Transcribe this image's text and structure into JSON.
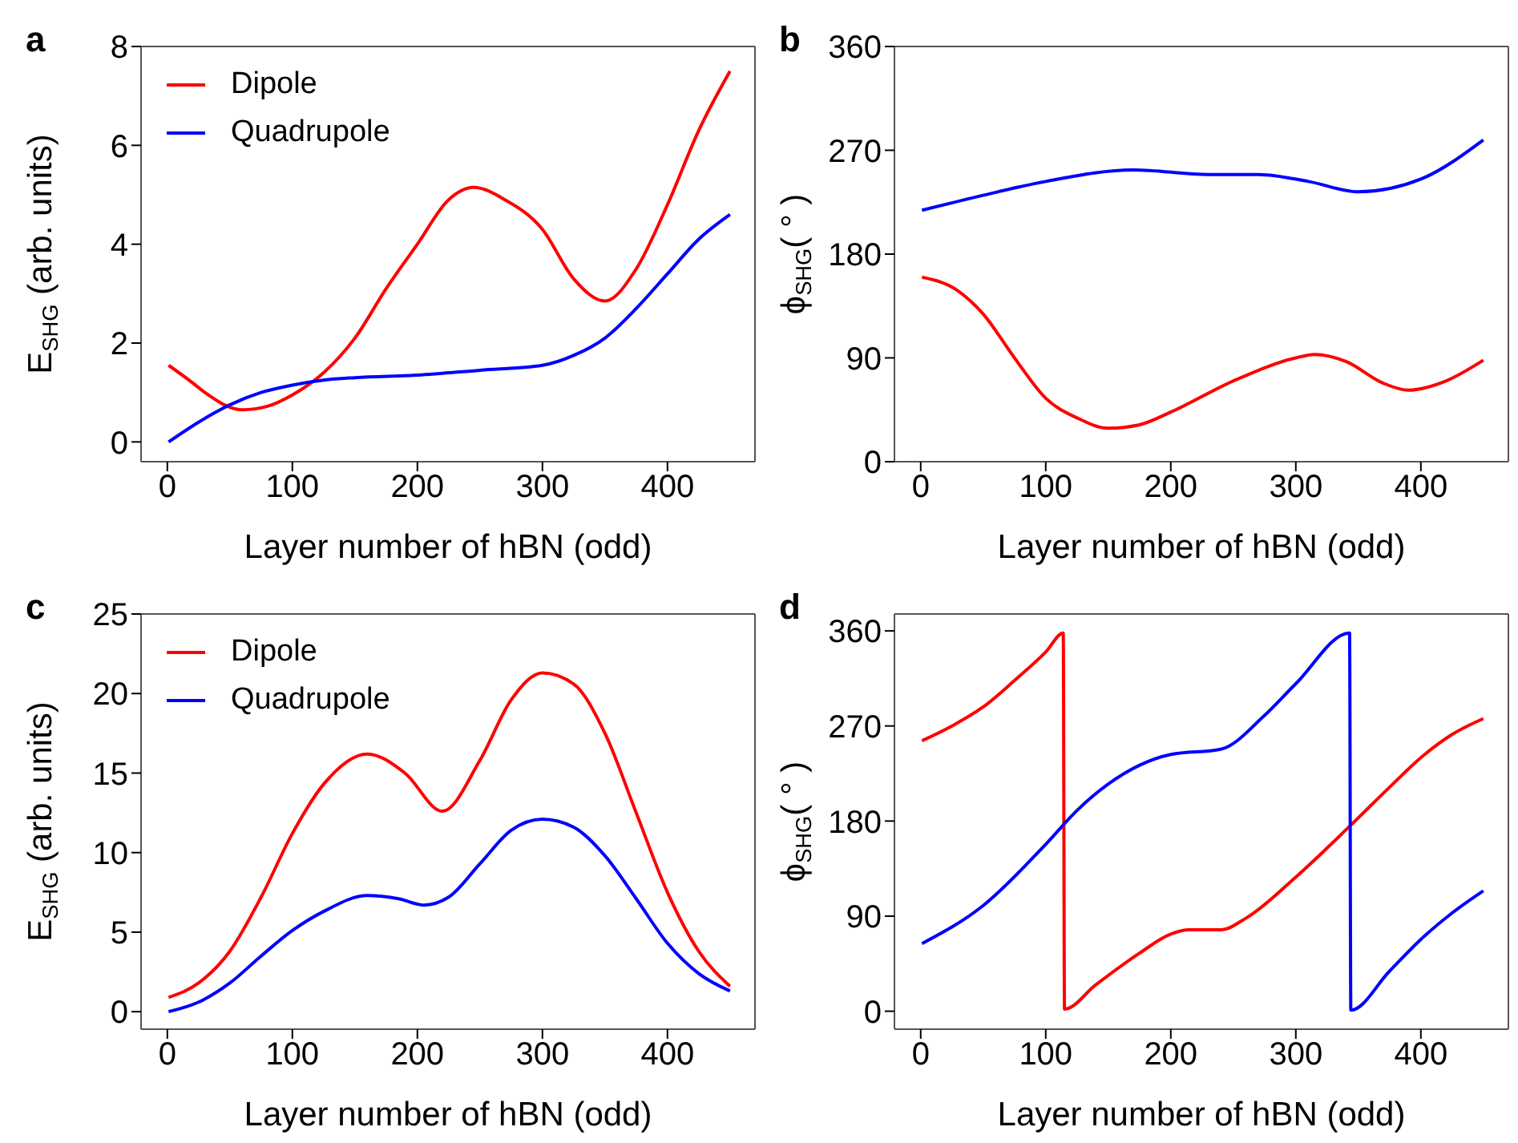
{
  "chart_data": [
    {
      "type": "line",
      "annotations": [
        "a"
      ],
      "xlabel": "Layer number of hBN (odd)",
      "ylabel": "E$_{SHG}$ (arb. units)",
      "xlim": [
        -21,
        470
      ],
      "xticks": [
        0,
        100,
        200,
        300,
        400
      ],
      "ylim": [
        -0.4,
        8
      ],
      "yticks": [
        0,
        2,
        4,
        6,
        8
      ],
      "legend": "top left",
      "series": [
        {
          "name": "Dipole",
          "color": "#ff0000",
          "x": [
            1,
            20,
            30,
            60,
            80,
            100,
            125,
            150,
            175,
            200,
            225,
            245,
            270,
            300,
            325,
            350,
            375,
            400,
            425,
            450
          ],
          "values": [
            1.55,
            1.2,
            1.0,
            0.65,
            0.72,
            0.95,
            1.4,
            2.1,
            3.1,
            4.0,
            4.9,
            5.15,
            4.9,
            4.3,
            3.3,
            2.85,
            3.5,
            4.8,
            6.3,
            7.5
          ]
        },
        {
          "name": "Quadrupole",
          "color": "#0000ff",
          "x": [
            1,
            25,
            50,
            75,
            100,
            125,
            150,
            200,
            250,
            300,
            325,
            350,
            375,
            400,
            425,
            450
          ],
          "values": [
            0,
            0.4,
            0.75,
            1.0,
            1.15,
            1.25,
            1.3,
            1.35,
            1.45,
            1.55,
            1.75,
            2.1,
            2.7,
            3.4,
            4.1,
            4.6
          ]
        }
      ]
    },
    {
      "type": "line",
      "annotations": [
        "b"
      ],
      "xlabel": "Layer number of hBN (odd)",
      "ylabel": "ϕ$_{SHG}$( ° )",
      "xlim": [
        -21,
        470
      ],
      "xticks": [
        0,
        100,
        200,
        300,
        400
      ],
      "ylim": [
        0,
        360
      ],
      "yticks": [
        0,
        90,
        180,
        270,
        360
      ],
      "series": [
        {
          "color": "#0000ff",
          "x": [
            1,
            50,
            100,
            170,
            230,
            270,
            310,
            350,
            400,
            450
          ],
          "values": [
            218,
            231,
            243,
            253,
            249,
            249,
            243,
            234,
            245,
            279
          ]
        },
        {
          "color": "#ff0000",
          "x": [
            1,
            30,
            50,
            75,
            100,
            125,
            150,
            175,
            200,
            250,
            300,
            315,
            340,
            370,
            390,
            420,
            450
          ],
          "values": [
            160,
            148,
            128,
            90,
            55,
            38,
            29,
            32,
            43,
            70,
            90,
            93,
            87,
            68,
            62,
            70,
            88
          ]
        }
      ]
    },
    {
      "type": "line",
      "annotations": [
        "c"
      ],
      "xlabel": "Layer number of hBN (odd)",
      "ylabel": "E$_{SHG}$ (arb. units)",
      "xlim": [
        -21,
        470
      ],
      "xticks": [
        0,
        100,
        200,
        300,
        400
      ],
      "ylim": [
        -1.1,
        25
      ],
      "yticks": [
        0,
        5,
        10,
        15,
        20,
        25
      ],
      "legend": "top left",
      "series": [
        {
          "name": "Dipole",
          "color": "#ff0000",
          "x": [
            1,
            25,
            50,
            75,
            100,
            125,
            160,
            190,
            220,
            250,
            275,
            300,
            325,
            350,
            375,
            400,
            425,
            450
          ],
          "values": [
            0.9,
            1.8,
            3.8,
            7.2,
            11.2,
            14.3,
            16.2,
            15,
            12.6,
            15.8,
            19.6,
            21.3,
            20.6,
            17.5,
            12.5,
            7.5,
            3.8,
            1.6
          ]
        },
        {
          "name": "Quadrupole",
          "color": "#0000ff",
          "x": [
            1,
            25,
            50,
            75,
            100,
            125,
            160,
            185,
            205,
            225,
            250,
            275,
            300,
            325,
            350,
            375,
            400,
            425,
            450
          ],
          "values": [
            0,
            0.6,
            1.8,
            3.5,
            5.1,
            6.3,
            7.3,
            7.1,
            6.7,
            7.2,
            9.3,
            11.4,
            12.1,
            11.6,
            9.8,
            7.1,
            4.3,
            2.4,
            1.3
          ]
        }
      ]
    },
    {
      "type": "line",
      "annotations": [
        "d"
      ],
      "xlabel": "Layer number of hBN (odd)",
      "ylabel": "ϕ$_{SHG}$( ° )",
      "xlim": [
        -21,
        470
      ],
      "xticks": [
        0,
        100,
        200,
        300,
        400
      ],
      "ylim": [
        -17,
        376
      ],
      "yticks": [
        0,
        90,
        180,
        270,
        360
      ],
      "series": [
        {
          "color": "#ff0000",
          "x": [
            1,
            25,
            50,
            75,
            100,
            114,
            115,
            140,
            175,
            200,
            215,
            240,
            260,
            300,
            343,
            375,
            400,
            425,
            450
          ],
          "values": [
            256,
            270,
            288,
            313,
            340,
            358,
            2,
            25,
            55,
            73,
            77,
            77,
            88,
            127,
            175,
            212,
            240,
            262,
            277
          ]
        },
        {
          "color": "#0000ff",
          "x": [
            1,
            50,
            100,
            125,
            150,
            200,
            240,
            275,
            300,
            343,
            344,
            375,
            400,
            425,
            450
          ],
          "values": [
            64,
            100,
            158,
            190,
            215,
            243,
            248,
            280,
            310,
            358,
            1,
            38,
            68,
            93,
            114
          ]
        }
      ]
    }
  ]
}
